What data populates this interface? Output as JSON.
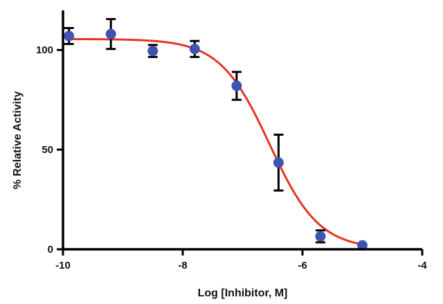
{
  "chart_data": {
    "type": "scatter",
    "xlabel": "Log [Inhibitor, M]",
    "ylabel": "% Relative Activity",
    "xlim": [
      -10,
      -4
    ],
    "ylim": [
      0,
      115
    ],
    "x_ticks": [
      -10,
      -8,
      -6,
      -4
    ],
    "y_ticks": [
      0,
      50,
      100
    ],
    "x_tick_labels": [
      "-10",
      "-8",
      "-6",
      "-4"
    ],
    "y_tick_labels": [
      "0",
      "50",
      "100"
    ],
    "grid": false,
    "colors": {
      "points": "#3d55b0",
      "curve": "#e53424",
      "axes": "#000000",
      "error_bars": "#000000"
    },
    "series": [
      {
        "points": [
          {
            "x": -9.9,
            "y": 107,
            "err": 4
          },
          {
            "x": -9.2,
            "y": 108,
            "err": 7.5
          },
          {
            "x": -8.5,
            "y": 99.5,
            "err": 3
          },
          {
            "x": -7.8,
            "y": 100.5,
            "err": 4
          },
          {
            "x": -7.1,
            "y": 82,
            "err": 7
          },
          {
            "x": -6.4,
            "y": 43.5,
            "err": 14
          },
          {
            "x": -5.7,
            "y": 6.5,
            "err": 3
          },
          {
            "x": -5.0,
            "y": 2,
            "err": 0
          }
        ]
      }
    ],
    "fit": {
      "model": "four-parameter logistic",
      "top": 105.5,
      "bottom": 0,
      "log_ic50": -6.55,
      "hill_slope": -1.05
    }
  }
}
